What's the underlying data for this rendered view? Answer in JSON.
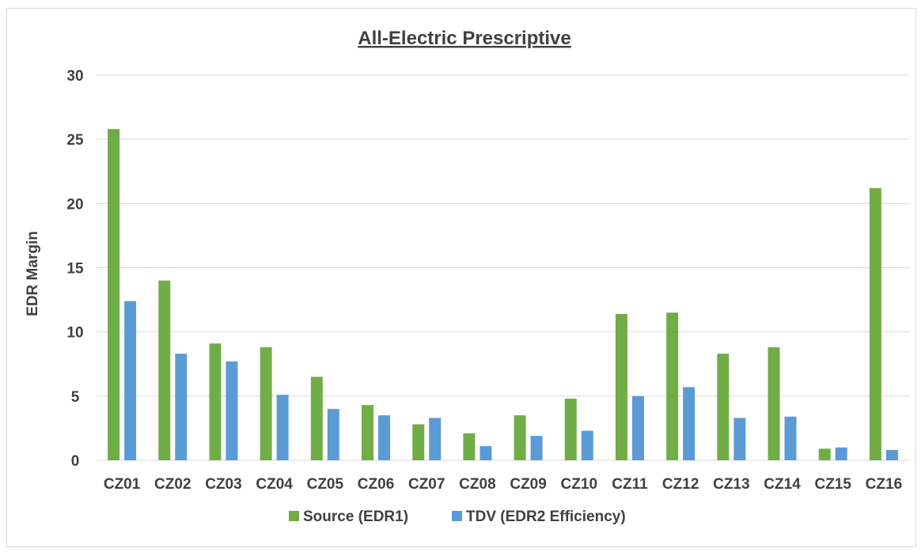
{
  "chart_data": {
    "type": "bar",
    "title": "All-Electric Prescriptive",
    "xlabel": "",
    "ylabel": "EDR Margin",
    "ylim": [
      0,
      30
    ],
    "yticks": [
      0,
      5,
      10,
      15,
      20,
      25,
      30
    ],
    "grid": true,
    "legend_position": "bottom",
    "categories": [
      "CZ01",
      "CZ02",
      "CZ03",
      "CZ04",
      "CZ05",
      "CZ06",
      "CZ07",
      "CZ08",
      "CZ09",
      "CZ10",
      "CZ11",
      "CZ12",
      "CZ13",
      "CZ14",
      "CZ15",
      "CZ16"
    ],
    "series": [
      {
        "name": "Source (EDR1)",
        "color": "#70ad47",
        "values": [
          25.8,
          14.0,
          9.1,
          8.8,
          6.5,
          4.3,
          2.8,
          2.1,
          3.5,
          4.8,
          11.4,
          11.5,
          8.3,
          8.8,
          0.9,
          21.2
        ]
      },
      {
        "name": "TDV (EDR2 Efficiency)",
        "color": "#5b9bd5",
        "values": [
          12.4,
          8.3,
          7.7,
          5.1,
          4.0,
          3.5,
          3.3,
          1.1,
          1.9,
          2.3,
          5.0,
          5.7,
          3.3,
          3.4,
          1.0,
          0.8
        ]
      }
    ]
  }
}
